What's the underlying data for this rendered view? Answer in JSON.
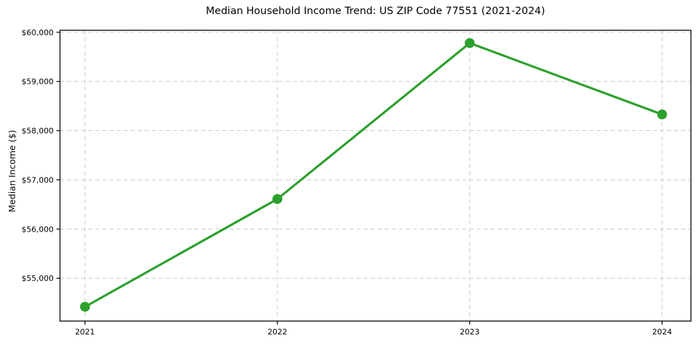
{
  "chart_data": {
    "type": "line",
    "title": "Median Household Income Trend: US ZIP Code 77551 (2021-2024)",
    "ylabel": "Median Income ($)",
    "xlabel": "",
    "x": [
      2021,
      2022,
      2023,
      2024
    ],
    "xtick_labels": [
      "2021",
      "2022",
      "2023",
      "2024"
    ],
    "series": [
      {
        "name": "Median Household Income",
        "values": [
          54420,
          56610,
          59780,
          58330
        ],
        "color": "#2ca02c",
        "marker": "circle"
      }
    ],
    "yticks": [
      55000,
      56000,
      57000,
      58000,
      59000,
      60000
    ],
    "ytick_labels": [
      "$55,000",
      "$56,000",
      "$57,000",
      "$58,000",
      "$59,000",
      "$60,000"
    ],
    "ylim": [
      54130,
      60040
    ],
    "xlim": [
      2020.87,
      2024.15
    ],
    "grid": true,
    "grid_color": "#cccccc",
    "grid_style": "dashed",
    "legend_position": "none",
    "background_color": "#ffffff",
    "spine_color": "#000000",
    "tick_color": "#000000"
  }
}
